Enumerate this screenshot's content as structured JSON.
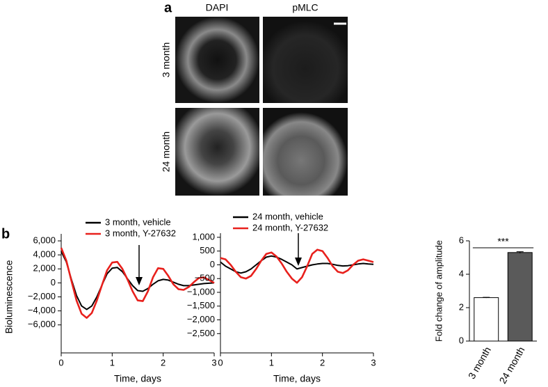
{
  "panel_a": {
    "label": "a",
    "columns": [
      "DAPI",
      "pMLC"
    ],
    "rows": [
      "3 month",
      "24 month"
    ]
  },
  "panel_b": {
    "label": "b"
  },
  "chart_data": [
    {
      "type": "line",
      "ylabel": "Bioluminescence",
      "xlabel": "Time, days",
      "legend": "top",
      "xlim": [
        0,
        3
      ],
      "xticks": [
        0,
        1,
        2,
        3
      ],
      "ylim": [
        -10000,
        7000
      ],
      "yticks": [
        {
          "value": -6000,
          "label": "−6,000"
        },
        {
          "value": -4000,
          "label": "−4,000"
        },
        {
          "value": -2000,
          "label": "−2,000"
        },
        0,
        {
          "value": 2000,
          "label": "2,000"
        },
        {
          "value": 4000,
          "label": "4,000"
        },
        {
          "value": 6000,
          "label": "6,000"
        }
      ],
      "x": [
        0,
        0.1,
        0.2,
        0.3,
        0.4,
        0.5,
        0.6,
        0.7,
        0.8,
        0.9,
        1.0,
        1.1,
        1.2,
        1.3,
        1.4,
        1.5,
        1.6,
        1.7,
        1.8,
        1.9,
        2.0,
        2.1,
        2.2,
        2.3,
        2.4,
        2.5,
        2.6,
        2.7,
        2.8,
        2.9,
        3.0
      ],
      "series": [
        {
          "name": "3 month, vehicle",
          "color": "#000000",
          "values": [
            4500,
            3000,
            500,
            -1800,
            -3300,
            -3800,
            -3300,
            -2000,
            -300,
            1300,
            2100,
            2200,
            1600,
            600,
            -400,
            -1100,
            -1200,
            -800,
            -200,
            300,
            500,
            400,
            100,
            -200,
            -400,
            -400,
            -300,
            -200,
            -100,
            -50,
            0
          ]
        },
        {
          "name": "3 month, Y-27632",
          "color": "#e8201c",
          "values": [
            5000,
            3200,
            300,
            -2500,
            -4400,
            -5000,
            -4300,
            -2500,
            -300,
            1800,
            2900,
            3000,
            2000,
            500,
            -1200,
            -2500,
            -2600,
            -1200,
            800,
            2100,
            2000,
            1000,
            -200,
            -900,
            -1000,
            -600,
            100,
            700,
            800,
            400,
            0
          ]
        }
      ]
    },
    {
      "type": "line",
      "xlabel": "Time, days",
      "legend": "top",
      "xlim": [
        0,
        3
      ],
      "xticks": [
        0,
        1,
        2,
        3
      ],
      "ylim": [
        -3200,
        1150
      ],
      "yticks": [
        {
          "value": -2500,
          "label": "−2,500"
        },
        {
          "value": -2000,
          "label": "−2,000"
        },
        {
          "value": -1500,
          "label": "−1,500"
        },
        {
          "value": -1000,
          "label": "−1,000"
        },
        {
          "value": -500,
          "label": "−500"
        },
        0,
        500,
        {
          "value": 1000,
          "label": "1,000"
        }
      ],
      "x": [
        0,
        0.1,
        0.2,
        0.3,
        0.4,
        0.5,
        0.6,
        0.7,
        0.8,
        0.9,
        1.0,
        1.1,
        1.2,
        1.3,
        1.4,
        1.5,
        1.6,
        1.7,
        1.8,
        1.9,
        2.0,
        2.1,
        2.2,
        2.3,
        2.4,
        2.5,
        2.6,
        2.7,
        2.8,
        2.9,
        3.0
      ],
      "series": [
        {
          "name": "24 month, vehicle",
          "color": "#000000",
          "values": [
            100,
            -50,
            -150,
            -250,
            -300,
            -250,
            -150,
            0,
            150,
            280,
            320,
            280,
            200,
            100,
            0,
            -150,
            -100,
            -50,
            0,
            30,
            50,
            50,
            20,
            -20,
            -40,
            -30,
            0,
            30,
            50,
            30,
            20
          ]
        },
        {
          "name": "24 month, Y-27632",
          "color": "#e8201c",
          "values": [
            250,
            200,
            0,
            -250,
            -450,
            -500,
            -400,
            -150,
            150,
            400,
            450,
            300,
            50,
            -250,
            -500,
            -650,
            -450,
            -50,
            400,
            550,
            500,
            250,
            -50,
            -250,
            -300,
            -200,
            0,
            150,
            200,
            150,
            100
          ]
        }
      ]
    },
    {
      "type": "bar",
      "ylabel": "Fold change of amplitude",
      "annotation": "***",
      "categories": [
        "3 month",
        "24 month"
      ],
      "values": [
        2.6,
        5.3
      ],
      "errors": [
        0.02,
        0.05
      ],
      "colors": [
        "#ffffff",
        "#5a5a5a"
      ],
      "ylim": [
        0,
        6
      ],
      "yticks": [
        0,
        2,
        4,
        6
      ]
    }
  ]
}
